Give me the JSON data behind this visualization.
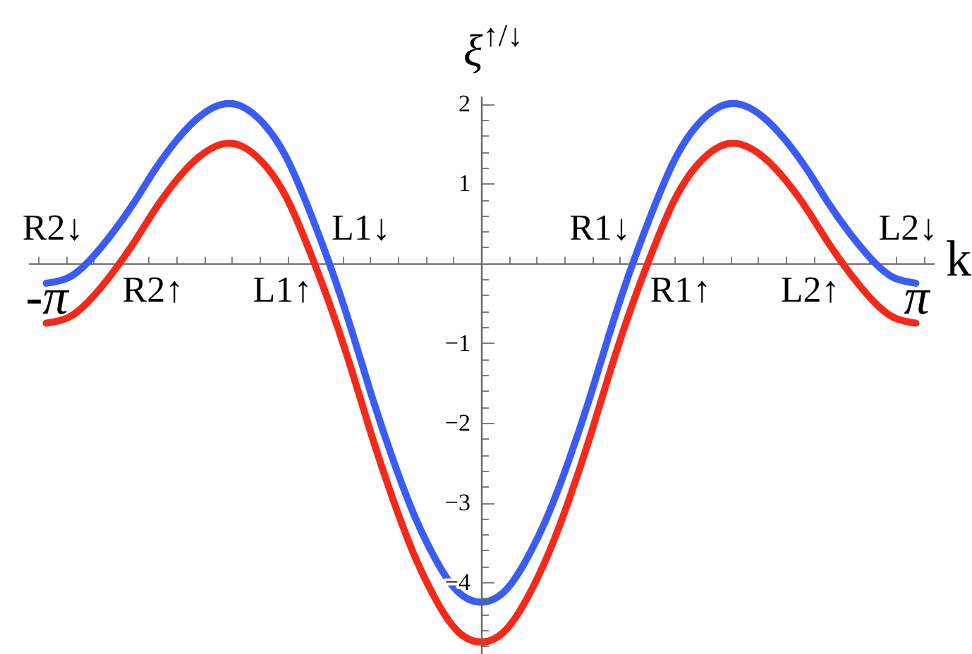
{
  "chart_data": {
    "type": "line",
    "xlabel": "k",
    "ylabel": "ξ$^{↑/↓}$",
    "x": [
      -3.14,
      -2.98,
      -2.83,
      -2.67,
      -2.51,
      -2.36,
      -2.2,
      -2.04,
      -1.88,
      -1.73,
      -1.57,
      -1.41,
      -1.26,
      -1.1,
      -0.94,
      -0.79,
      -0.63,
      -0.47,
      -0.31,
      -0.16,
      0,
      0.16,
      0.31,
      0.47,
      0.63,
      0.79,
      0.94,
      1.1,
      1.26,
      1.41,
      1.57,
      1.73,
      1.88,
      2.04,
      2.2,
      2.36,
      2.51,
      2.67,
      2.83,
      2.98,
      3.14
    ],
    "series": [
      {
        "color": "#3a5cf5",
        "values": [
          -0.25,
          -0.18,
          0.03,
          0.36,
          0.75,
          1.16,
          1.54,
          1.83,
          1.99,
          1.97,
          1.75,
          1.34,
          0.75,
          0.02,
          -0.81,
          -1.66,
          -2.49,
          -3.21,
          -3.77,
          -4.13,
          -4.25,
          -4.13,
          -3.77,
          -3.21,
          -2.49,
          -1.66,
          -0.81,
          0.02,
          0.75,
          1.34,
          1.75,
          1.97,
          1.99,
          1.83,
          1.54,
          1.16,
          0.75,
          0.36,
          0.03,
          -0.18,
          -0.25
        ]
      },
      {
        "color": "#f5291a",
        "values": [
          -0.75,
          -0.68,
          -0.47,
          -0.14,
          0.25,
          0.66,
          1.04,
          1.33,
          1.49,
          1.47,
          1.25,
          0.84,
          0.25,
          -0.48,
          -1.31,
          -2.16,
          -2.99,
          -3.71,
          -4.27,
          -4.63,
          -4.75,
          -4.63,
          -4.27,
          -3.71,
          -2.99,
          -2.16,
          -1.31,
          -0.48,
          0.25,
          0.84,
          1.25,
          1.47,
          1.49,
          1.33,
          1.04,
          0.66,
          0.25,
          -0.14,
          -0.47,
          -0.68,
          -0.75
        ]
      }
    ],
    "xlim": [
      -3.27,
      3.27
    ],
    "ylim": [
      -4.9,
      2.1
    ],
    "xticks": [
      {
        "value": -3.2,
        "label": null
      },
      {
        "value": -3.14,
        "label": "-π"
      },
      {
        "value": -3,
        "label": null
      },
      {
        "value": -2.8,
        "label": null
      },
      {
        "value": -2.6,
        "label": null
      },
      {
        "value": -2.4,
        "label": null
      },
      {
        "value": -2.2,
        "label": null
      },
      {
        "value": -2,
        "label": null
      },
      {
        "value": -1.8,
        "label": null
      },
      {
        "value": -1.6,
        "label": null
      },
      {
        "value": -1.4,
        "label": null
      },
      {
        "value": -1.2,
        "label": null
      },
      {
        "value": -1,
        "label": null
      },
      {
        "value": -0.8,
        "label": null
      },
      {
        "value": -0.6,
        "label": null
      },
      {
        "value": -0.4,
        "label": null
      },
      {
        "value": -0.2,
        "label": null
      },
      {
        "value": 0,
        "label": null
      },
      {
        "value": 0.2,
        "label": null
      },
      {
        "value": 0.4,
        "label": null
      },
      {
        "value": 0.6,
        "label": null
      },
      {
        "value": 0.8,
        "label": null
      },
      {
        "value": 1,
        "label": null
      },
      {
        "value": 1.2,
        "label": null
      },
      {
        "value": 1.4,
        "label": null
      },
      {
        "value": 1.6,
        "label": null
      },
      {
        "value": 1.8,
        "label": null
      },
      {
        "value": 2,
        "label": null
      },
      {
        "value": 2.2,
        "label": null
      },
      {
        "value": 2.4,
        "label": null
      },
      {
        "value": 2.6,
        "label": null
      },
      {
        "value": 2.8,
        "label": null
      },
      {
        "value": 3,
        "label": null
      },
      {
        "value": 3.14,
        "label": "π"
      },
      {
        "value": 3.2,
        "label": null
      }
    ],
    "yticks": [
      {
        "value": -4.8,
        "label": null
      },
      {
        "value": -4.6,
        "label": null
      },
      {
        "value": -4.4,
        "label": null
      },
      {
        "value": -4.2,
        "label": null
      },
      -4,
      {
        "value": -3.8,
        "label": null
      },
      {
        "value": -3.6,
        "label": null
      },
      {
        "value": -3.4,
        "label": null
      },
      {
        "value": -3.2,
        "label": null
      },
      -3,
      {
        "value": -2.8,
        "label": null
      },
      {
        "value": -2.6,
        "label": null
      },
      {
        "value": -2.4,
        "label": null
      },
      {
        "value": -2.2,
        "label": null
      },
      -2,
      {
        "value": -1.8,
        "label": null
      },
      {
        "value": -1.6,
        "label": null
      },
      {
        "value": -1.4,
        "label": null
      },
      {
        "value": -1.2,
        "label": null
      },
      -1,
      {
        "value": -0.8,
        "label": null
      },
      {
        "value": -0.6,
        "label": null
      },
      {
        "value": -0.4,
        "label": null
      },
      {
        "value": -0.2,
        "label": null
      },
      {
        "value": 0,
        "label": null
      },
      {
        "value": 0.2,
        "label": null
      },
      {
        "value": 0.4,
        "label": null
      },
      {
        "value": 0.6,
        "label": null
      },
      {
        "value": 0.8,
        "label": null
      },
      1,
      {
        "value": 1.2,
        "label": null
      },
      {
        "value": 1.4,
        "label": null
      },
      {
        "value": 1.6,
        "label": null
      },
      {
        "value": 1.8,
        "label": null
      },
      2
    ],
    "annotations": [
      {
        "text": "R2↓",
        "x": -2.85,
        "y": 0
      },
      {
        "text": "R2↑",
        "x": -2.61,
        "y": 0
      },
      {
        "text": "L1↑",
        "x": -1.2,
        "y": 0
      },
      {
        "text": "L1↓",
        "x": -1.1,
        "y": 0
      },
      {
        "text": "R1↓",
        "x": 1.1,
        "y": 0
      },
      {
        "text": "R1↑",
        "x": 1.2,
        "y": 0
      },
      {
        "text": "L2↑",
        "x": 2.61,
        "y": 0
      },
      {
        "text": "L2↓",
        "x": 2.85,
        "y": 0
      }
    ]
  }
}
